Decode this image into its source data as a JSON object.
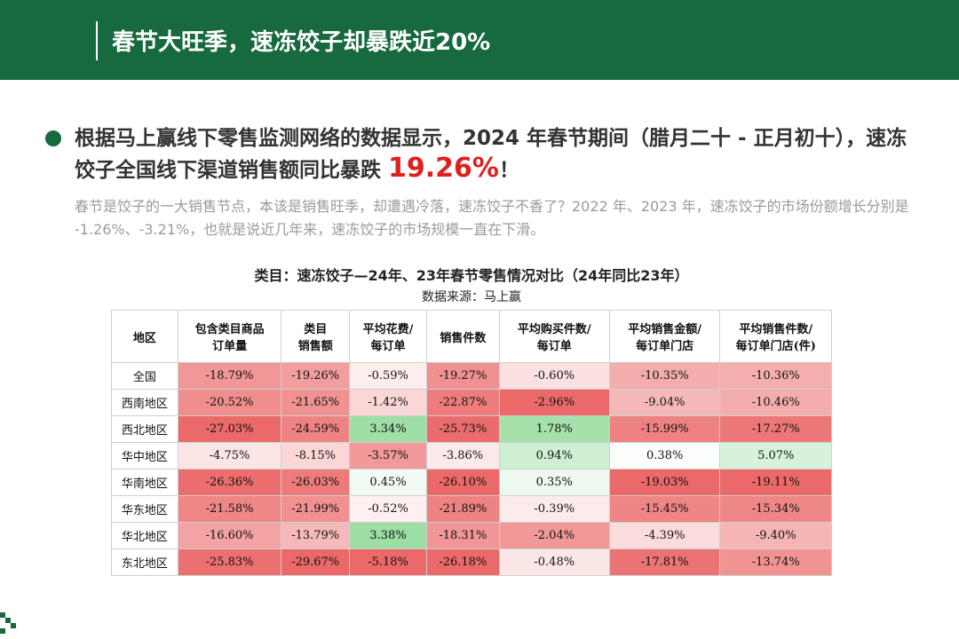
{
  "header": {
    "title": "春节大旺季，速冻饺子却暴跌近20%"
  },
  "bullet": {
    "lead": "根据马上赢线下零售监测网络的数据显示，2024 年春节期间（腊月二十 - 正月初十），速冻饺子全国线下渠道销售额同比暴跌 ",
    "highlight": "19.26%",
    "tail": "！"
  },
  "note": "春节是饺子的一大销售节点，本该是销售旺季，却遭遇冷落，速冻饺子不香了？2022 年、2023 年，速冻饺子的市场份额增长分别是 -1.26%、-3.21%，也就是说近几年来，速冻饺子的市场规模一直在下滑。",
  "table": {
    "title": "类目：速冻饺子—24年、23年春节零售情况对比（24年同比23年）",
    "source": "数据来源：马上赢",
    "columns": [
      [
        "地区"
      ],
      [
        "包含类目商品",
        "订单量"
      ],
      [
        "类目",
        "销售额"
      ],
      [
        "平均花费/",
        "每订单"
      ],
      [
        "销售件数"
      ],
      [
        "平均购买件数/",
        "每订单"
      ],
      [
        "平均销售金额/",
        "每订单门店"
      ],
      [
        "平均销售件数/",
        "每订单门店(件)"
      ]
    ],
    "rows": [
      [
        "全国",
        "-18.79%",
        "-19.26%",
        "-0.59%",
        "-19.27%",
        "-0.60%",
        "-10.35%",
        "-10.36%"
      ],
      [
        "西南地区",
        "-20.52%",
        "-21.65%",
        "-1.42%",
        "-22.87%",
        "-2.96%",
        "-9.04%",
        "-10.46%"
      ],
      [
        "西北地区",
        "-27.03%",
        "-24.59%",
        "3.34%",
        "-25.73%",
        "1.78%",
        "-15.99%",
        "-17.27%"
      ],
      [
        "华中地区",
        "-4.75%",
        "-8.15%",
        "-3.57%",
        "-3.86%",
        "0.94%",
        "0.38%",
        "5.07%"
      ],
      [
        "华南地区",
        "-26.36%",
        "-26.03%",
        "0.45%",
        "-26.10%",
        "0.35%",
        "-19.03%",
        "-19.11%"
      ],
      [
        "华东地区",
        "-21.58%",
        "-21.99%",
        "-0.52%",
        "-21.89%",
        "-0.39%",
        "-15.45%",
        "-15.34%"
      ],
      [
        "华北地区",
        "-16.60%",
        "-13.79%",
        "3.38%",
        "-18.31%",
        "-2.04%",
        "-4.39%",
        "-9.40%"
      ],
      [
        "东北地区",
        "-25.83%",
        "-29.67%",
        "-5.18%",
        "-26.18%",
        "-0.48%",
        "-17.81%",
        "-13.74%"
      ]
    ]
  }
}
